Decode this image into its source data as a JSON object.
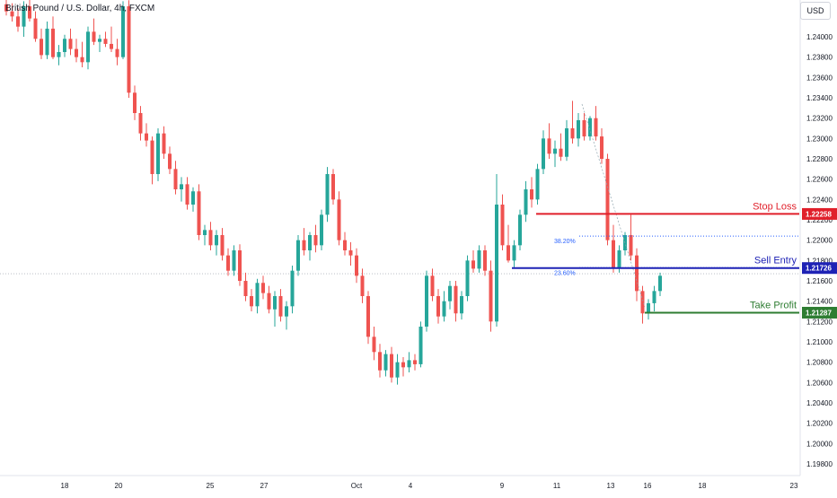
{
  "header": {
    "symbol_title": "British Pound / U.S. Dollar, 4h, FXCM",
    "currency_button": "USD"
  },
  "colors": {
    "up": "#26a69a",
    "down": "#ef5350",
    "stop_loss": "#e01f2a",
    "sell_entry": "#1e22b5",
    "take_profit": "#2e7d32",
    "fib": "#2962ff",
    "axis_text": "#131722"
  },
  "chart_data": {
    "type": "candlestick",
    "title": "British Pound / U.S. Dollar, 4h, FXCM",
    "ylim": [
      1.197,
      1.246
    ],
    "y_ticks": [
      "1.24000",
      "1.23800",
      "1.23600",
      "1.23400",
      "1.23200",
      "1.23000",
      "1.22800",
      "1.22600",
      "1.22400",
      "1.22200",
      "1.22000",
      "1.21800",
      "1.21600",
      "1.21400",
      "1.21200",
      "1.21000",
      "1.20800",
      "1.20600",
      "1.20400",
      "1.20200",
      "1.20000",
      "1.19800"
    ],
    "x_ticks": [
      "18",
      "20",
      "25",
      "27",
      "Oct",
      "4",
      "9",
      "11",
      "13",
      "16",
      "18",
      "23"
    ],
    "current_price": 1.2167,
    "candles": [
      [
        1.2432,
        1.244,
        1.2421,
        1.2425
      ],
      [
        1.2425,
        1.2433,
        1.2415,
        1.242
      ],
      [
        1.242,
        1.2428,
        1.2405,
        1.241
      ],
      [
        1.241,
        1.2435,
        1.24,
        1.243
      ],
      [
        1.243,
        1.2438,
        1.2415,
        1.2418
      ],
      [
        1.2418,
        1.2425,
        1.2395,
        1.2398
      ],
      [
        1.2398,
        1.2408,
        1.2378,
        1.2382
      ],
      [
        1.2382,
        1.2415,
        1.2378,
        1.2408
      ],
      [
        1.2408,
        1.242,
        1.2378,
        1.238
      ],
      [
        1.238,
        1.2392,
        1.2372,
        1.2385
      ],
      [
        1.2385,
        1.2402,
        1.238,
        1.2398
      ],
      [
        1.2398,
        1.2408,
        1.2382,
        1.2388
      ],
      [
        1.2388,
        1.2398,
        1.2375,
        1.238
      ],
      [
        1.238,
        1.2395,
        1.237,
        1.2375
      ],
      [
        1.2375,
        1.241,
        1.2368,
        1.2405
      ],
      [
        1.2405,
        1.2418,
        1.2392,
        1.2395
      ],
      [
        1.2395,
        1.2402,
        1.2385,
        1.2398
      ],
      [
        1.2398,
        1.2405,
        1.239,
        1.2393
      ],
      [
        1.2393,
        1.241,
        1.2385,
        1.2388
      ],
      [
        1.2388,
        1.2398,
        1.2372,
        1.238
      ],
      [
        1.238,
        1.2435,
        1.2378,
        1.243
      ],
      [
        1.243,
        1.2436,
        1.234,
        1.2345
      ],
      [
        1.2345,
        1.2352,
        1.2318,
        1.2325
      ],
      [
        1.2325,
        1.2332,
        1.2298,
        1.2305
      ],
      [
        1.2305,
        1.2315,
        1.2292,
        1.2298
      ],
      [
        1.2298,
        1.2302,
        1.2255,
        1.2265
      ],
      [
        1.2265,
        1.231,
        1.2258,
        1.2305
      ],
      [
        1.2305,
        1.2312,
        1.228,
        1.2285
      ],
      [
        1.2285,
        1.2292,
        1.2265,
        1.227
      ],
      [
        1.227,
        1.2278,
        1.2245,
        1.225
      ],
      [
        1.225,
        1.2262,
        1.2238,
        1.2255
      ],
      [
        1.2255,
        1.2262,
        1.223,
        1.2235
      ],
      [
        1.2235,
        1.2252,
        1.2228,
        1.2248
      ],
      [
        1.2248,
        1.2255,
        1.22,
        1.2205
      ],
      [
        1.2205,
        1.2215,
        1.2195,
        1.221
      ],
      [
        1.221,
        1.2218,
        1.219,
        1.2195
      ],
      [
        1.2195,
        1.221,
        1.2185,
        1.2205
      ],
      [
        1.2205,
        1.2212,
        1.218,
        1.2185
      ],
      [
        1.2185,
        1.2192,
        1.2165,
        1.217
      ],
      [
        1.217,
        1.2195,
        1.2165,
        1.219
      ],
      [
        1.219,
        1.2196,
        1.2155,
        1.216
      ],
      [
        1.216,
        1.2168,
        1.214,
        1.2145
      ],
      [
        1.2145,
        1.2152,
        1.213,
        1.2135
      ],
      [
        1.2135,
        1.2162,
        1.2128,
        1.2158
      ],
      [
        1.2158,
        1.2165,
        1.2142,
        1.2148
      ],
      [
        1.2148,
        1.2155,
        1.2128,
        1.2132
      ],
      [
        1.2132,
        1.215,
        1.2115,
        1.2145
      ],
      [
        1.2145,
        1.2152,
        1.212,
        1.2125
      ],
      [
        1.2125,
        1.214,
        1.2112,
        1.2135
      ],
      [
        1.2135,
        1.2175,
        1.2128,
        1.217
      ],
      [
        1.217,
        1.2205,
        1.2165,
        1.22
      ],
      [
        1.22,
        1.2212,
        1.2185,
        1.219
      ],
      [
        1.219,
        1.2208,
        1.218,
        1.2205
      ],
      [
        1.2205,
        1.2215,
        1.2188,
        1.2195
      ],
      [
        1.2195,
        1.223,
        1.219,
        1.2225
      ],
      [
        1.2225,
        1.2272,
        1.2218,
        1.2265
      ],
      [
        1.2265,
        1.227,
        1.2235,
        1.224
      ],
      [
        1.224,
        1.2248,
        1.2195,
        1.22
      ],
      [
        1.22,
        1.2208,
        1.2185,
        1.219
      ],
      [
        1.219,
        1.2198,
        1.2175,
        1.2185
      ],
      [
        1.2185,
        1.2192,
        1.2158,
        1.2165
      ],
      [
        1.2165,
        1.2172,
        1.2138,
        1.2145
      ],
      [
        1.2145,
        1.215,
        1.2098,
        1.2105
      ],
      [
        1.2105,
        1.2115,
        1.2082,
        1.209
      ],
      [
        1.209,
        1.2098,
        1.2065,
        1.2072
      ],
      [
        1.2072,
        1.2092,
        1.2066,
        1.2088
      ],
      [
        1.2088,
        1.2095,
        1.206,
        1.2065
      ],
      [
        1.2065,
        1.2088,
        1.2058,
        1.208
      ],
      [
        1.208,
        1.2085,
        1.2066,
        1.2075
      ],
      [
        1.2075,
        1.209,
        1.207,
        1.2082
      ],
      [
        1.2082,
        1.2088,
        1.2072,
        1.2078
      ],
      [
        1.2078,
        1.212,
        1.2075,
        1.2115
      ],
      [
        1.2115,
        1.217,
        1.211,
        1.2165
      ],
      [
        1.2165,
        1.2172,
        1.214,
        1.2145
      ],
      [
        1.2145,
        1.2152,
        1.2118,
        1.2125
      ],
      [
        1.2125,
        1.215,
        1.212,
        1.214
      ],
      [
        1.214,
        1.216,
        1.2132,
        1.2155
      ],
      [
        1.2155,
        1.216,
        1.212,
        1.2128
      ],
      [
        1.2128,
        1.215,
        1.2122,
        1.2145
      ],
      [
        1.2145,
        1.2185,
        1.214,
        1.218
      ],
      [
        1.218,
        1.219,
        1.2168,
        1.2172
      ],
      [
        1.2172,
        1.2195,
        1.2168,
        1.219
      ],
      [
        1.219,
        1.2195,
        1.2165,
        1.217
      ],
      [
        1.217,
        1.218,
        1.211,
        1.212
      ],
      [
        1.212,
        1.2265,
        1.2115,
        1.2235
      ],
      [
        1.2235,
        1.2245,
        1.219,
        1.2195
      ],
      [
        1.2195,
        1.2215,
        1.2178,
        1.218
      ],
      [
        1.218,
        1.22,
        1.2172,
        1.2195
      ],
      [
        1.2195,
        1.223,
        1.219,
        1.2225
      ],
      [
        1.2225,
        1.2258,
        1.2218,
        1.225
      ],
      [
        1.225,
        1.2262,
        1.2232,
        1.224
      ],
      [
        1.224,
        1.2275,
        1.2235,
        1.227
      ],
      [
        1.227,
        1.2308,
        1.2265,
        1.23
      ],
      [
        1.23,
        1.2315,
        1.228,
        1.2285
      ],
      [
        1.2285,
        1.2298,
        1.2272,
        1.229
      ],
      [
        1.229,
        1.2305,
        1.2278,
        1.2282
      ],
      [
        1.2282,
        1.2318,
        1.2278,
        1.231
      ],
      [
        1.231,
        1.2337,
        1.2295,
        1.23
      ],
      [
        1.23,
        1.2325,
        1.2292,
        1.2318
      ],
      [
        1.2318,
        1.2325,
        1.2298,
        1.2302
      ],
      [
        1.2302,
        1.2322,
        1.2298,
        1.232
      ],
      [
        1.232,
        1.2332,
        1.2298,
        1.2302
      ],
      [
        1.2302,
        1.231,
        1.2275,
        1.228
      ],
      [
        1.228,
        1.2285,
        1.2195,
        1.22
      ],
      [
        1.22,
        1.2215,
        1.2168,
        1.2172
      ],
      [
        1.2172,
        1.2195,
        1.2168,
        1.219
      ],
      [
        1.219,
        1.2208,
        1.2185,
        1.2205
      ],
      [
        1.2205,
        1.2225,
        1.218,
        1.2185
      ],
      [
        1.2185,
        1.2192,
        1.214,
        1.215
      ],
      [
        1.215,
        1.2155,
        1.2118,
        1.2128
      ],
      [
        1.2128,
        1.2142,
        1.2122,
        1.2138
      ],
      [
        1.2138,
        1.2155,
        1.213,
        1.215
      ],
      [
        1.215,
        1.2168,
        1.2145,
        1.2165
      ]
    ]
  },
  "levels": {
    "stop_loss": {
      "label": "Stop Loss",
      "price": 1.22258,
      "price_text": "1.22258"
    },
    "sell_entry": {
      "label": "Sell Entry",
      "price": 1.21726,
      "price_text": "1.21726"
    },
    "take_profit": {
      "label": "Take Profit",
      "price": 1.21287,
      "price_text": "1.21287"
    }
  },
  "fib": {
    "level_382": {
      "label": "38.20%",
      "price": 1.2204
    },
    "level_236": {
      "label": "23.60%",
      "price": 1.2173
    }
  }
}
